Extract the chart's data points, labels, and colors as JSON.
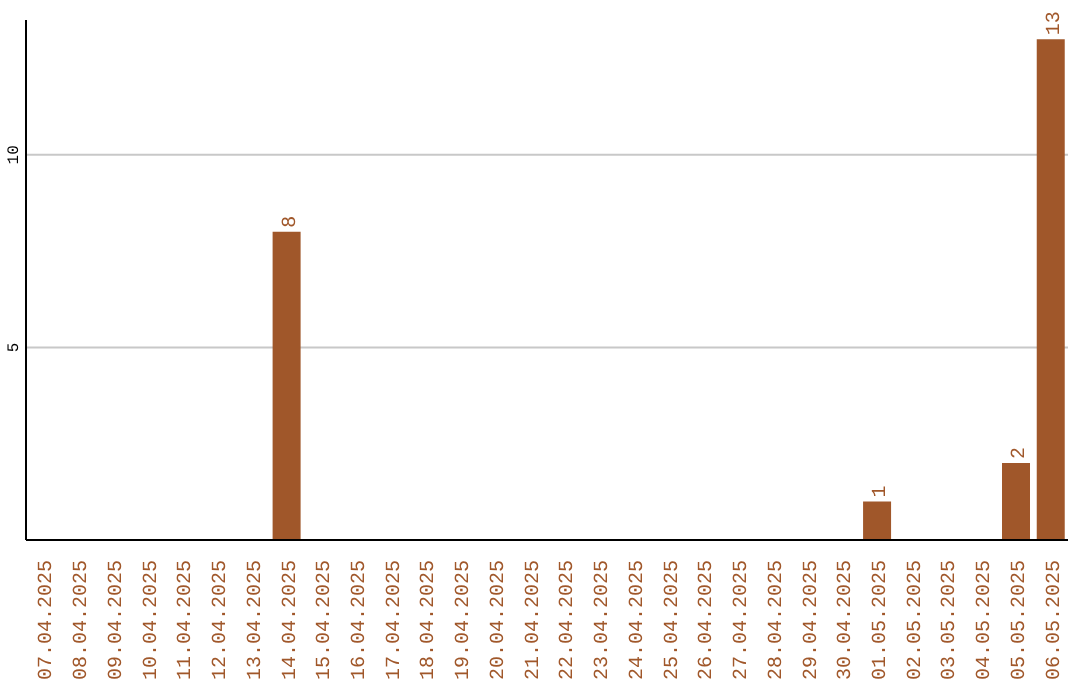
{
  "chart_data": {
    "type": "bar",
    "categories": [
      "07.04.2025",
      "08.04.2025",
      "09.04.2025",
      "10.04.2025",
      "11.04.2025",
      "12.04.2025",
      "13.04.2025",
      "14.04.2025",
      "15.04.2025",
      "16.04.2025",
      "17.04.2025",
      "18.04.2025",
      "19.04.2025",
      "20.04.2025",
      "21.04.2025",
      "22.04.2025",
      "23.04.2025",
      "24.04.2025",
      "25.04.2025",
      "26.04.2025",
      "27.04.2025",
      "28.04.2025",
      "29.04.2025",
      "30.04.2025",
      "01.05.2025",
      "02.05.2025",
      "03.05.2025",
      "04.05.2025",
      "05.05.2025",
      "06.05.2025"
    ],
    "values": [
      0,
      0,
      0,
      0,
      0,
      0,
      0,
      8,
      0,
      0,
      0,
      0,
      0,
      0,
      0,
      0,
      0,
      0,
      0,
      0,
      0,
      0,
      0,
      0,
      1,
      0,
      0,
      0,
      2,
      13
    ],
    "value_labels": [
      null,
      null,
      null,
      null,
      null,
      null,
      null,
      "8",
      null,
      null,
      null,
      null,
      null,
      null,
      null,
      null,
      null,
      null,
      null,
      null,
      null,
      null,
      null,
      null,
      "1",
      null,
      null,
      null,
      "2",
      "13"
    ],
    "color": "#a0572a",
    "ylim": [
      0,
      13.5
    ],
    "yticks": [
      5,
      10
    ],
    "grid": "y"
  }
}
